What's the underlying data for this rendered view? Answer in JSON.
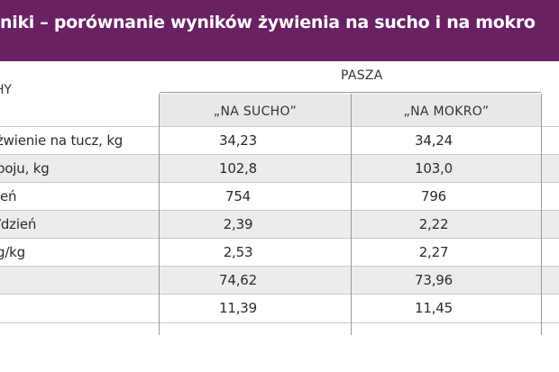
{
  "title": "niki – porównanie wyników żywienia na sucho i na mokro",
  "header": {
    "left": "HY",
    "group": "PASZA",
    "col1": "„NA SUCHO”",
    "col2": "„NA MOKRO”"
  },
  "rows": [
    {
      "label": "żwienie na tucz, kg",
      "dry": "34,23",
      "wet": "34,24"
    },
    {
      "label": "boju, kg",
      "dry": "102,8",
      "wet": "103,0"
    },
    {
      "label": "ień",
      "dry": "754",
      "wet": "796"
    },
    {
      "label": "/dzień",
      "dry": "2,39",
      "wet": "2,22"
    },
    {
      "label": "g/kg",
      "dry": "2,53",
      "wet": "2,27"
    },
    {
      "label": "",
      "dry": "74,62",
      "wet": "73,96"
    },
    {
      "label": "",
      "dry": "11,39",
      "wet": "11,45"
    }
  ],
  "colors": {
    "title_bg": "#6a2164",
    "alt_row": "#ececec",
    "header_bg": "#e8e8e8"
  }
}
